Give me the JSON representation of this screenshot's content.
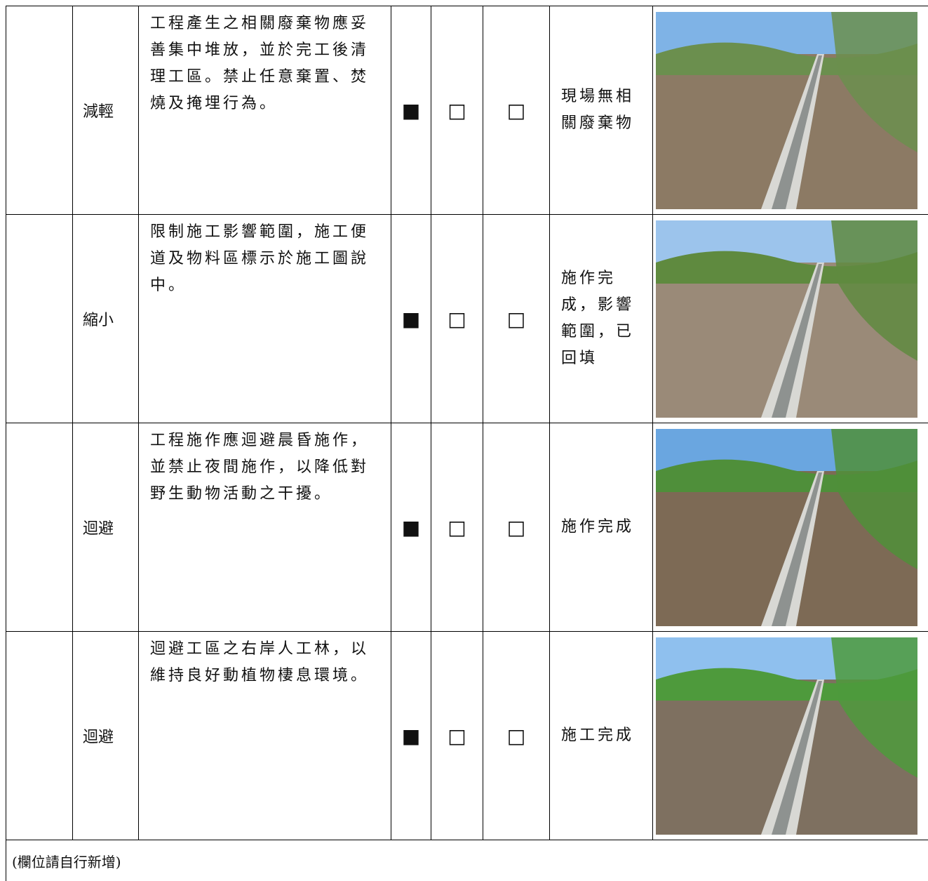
{
  "table": {
    "rows": [
      {
        "category": "減輕",
        "measure": "工程產生之相關廢棄物應妥善集中堆放，並於完工後清理工區。禁止任意棄置、焚燒及掩埋行為。",
        "checks": [
          "■",
          "□",
          "□"
        ],
        "status": "現場無相關廢棄物"
      },
      {
        "category": "縮小",
        "measure": "限制施工影響範圍，施工便道及物料區標示於施工圖說中。",
        "checks": [
          "■",
          "□",
          "□"
        ],
        "status": "施作完成，影響範圍，已回填"
      },
      {
        "category": "迴避",
        "measure": "工程施作應迴避晨昏施作，並禁止夜間施作，以降低對野生動物活動之干擾。",
        "checks": [
          "■",
          "□",
          "□"
        ],
        "status": "施作完成"
      },
      {
        "category": "迴避",
        "measure": "迴避工區之右岸人工林，以維持良好動植物棲息環境。",
        "checks": [
          "■",
          "□",
          "□"
        ],
        "status": "施工完成"
      }
    ],
    "footer": "(欄位請自行新增)"
  }
}
